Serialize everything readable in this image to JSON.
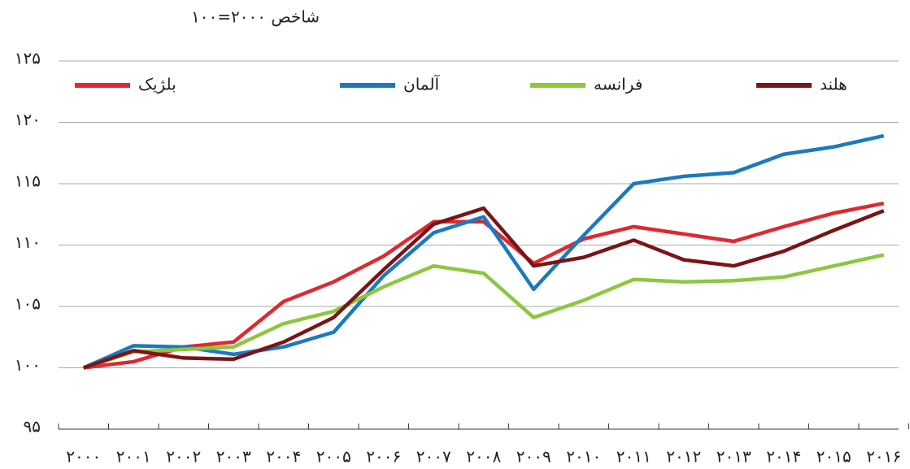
{
  "chart_data": {
    "type": "line",
    "ylabel": "شاخص ۲۰۰۰=۱۰۰",
    "categories": [
      "۲۰۰۰",
      "۲۰۰۱",
      "۲۰۰۲",
      "۲۰۰۳",
      "۲۰۰۴",
      "۲۰۰۵",
      "۲۰۰۶",
      "۲۰۰۷",
      "۲۰۰۸",
      "۲۰۰۹",
      "۲۰۱۰",
      "۲۰۱۱",
      "۲۰۱۲",
      "۲۰۱۳",
      "۲۰۱۴",
      "۲۰۱۵",
      "۲۰۱۶"
    ],
    "series": [
      {
        "name": "بلژیک",
        "color": "#e0282e",
        "values": [
          100,
          100.5,
          101.7,
          102.1,
          105.4,
          107.0,
          109.1,
          111.9,
          111.9,
          108.5,
          110.5,
          111.5,
          110.9,
          110.3,
          111.5,
          112.6,
          113.4
        ]
      },
      {
        "name": "آلمان",
        "color": "#1a7abf",
        "values": [
          100,
          101.8,
          101.7,
          101.1,
          101.7,
          102.9,
          107.5,
          111.0,
          112.3,
          106.4,
          110.8,
          115.0,
          115.6,
          115.9,
          117.4,
          118.0,
          118.9
        ]
      },
      {
        "name": "فرانسه",
        "color": "#8dc63f",
        "values": [
          100,
          101.3,
          101.5,
          101.7,
          103.6,
          104.6,
          106.6,
          108.3,
          107.7,
          104.1,
          105.5,
          107.2,
          107.0,
          107.1,
          107.4,
          108.3,
          109.2
        ]
      },
      {
        "name": "هلند",
        "color": "#7b1416",
        "values": [
          100,
          101.4,
          100.8,
          100.7,
          102.1,
          104.1,
          108.0,
          111.7,
          113.0,
          108.3,
          109.0,
          110.4,
          108.8,
          108.3,
          109.5,
          111.2,
          112.8
        ]
      }
    ],
    "ylim": [
      95,
      125
    ],
    "yticks": [
      {
        "value": 95,
        "label": "۹۵"
      },
      {
        "value": 100,
        "label": "۱۰۰"
      },
      {
        "value": 105,
        "label": "۱۰۵"
      },
      {
        "value": 110,
        "label": "۱۱۰"
      },
      {
        "value": 115,
        "label": "۱۱۵"
      },
      {
        "value": 120,
        "label": "۱۲۰"
      },
      {
        "value": 125,
        "label": "۱۲۵"
      }
    ],
    "grid": true,
    "legend": "top"
  }
}
